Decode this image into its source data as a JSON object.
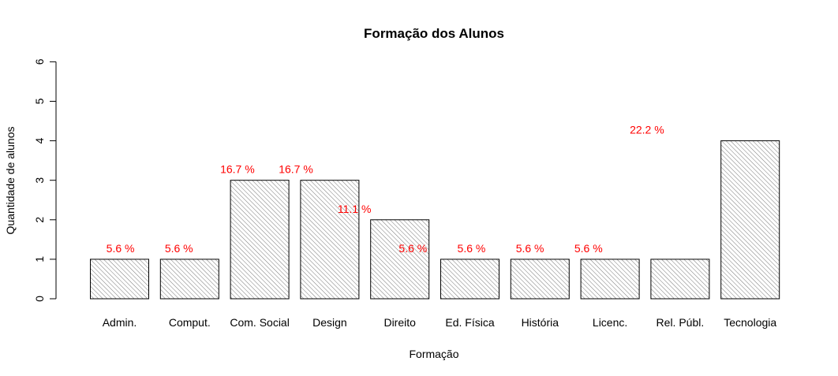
{
  "chart_data": {
    "type": "bar",
    "title": "Formação dos Alunos",
    "xlabel": "Formação",
    "ylabel": "Quantidade de alunos",
    "categories": [
      "Admin.",
      "Comput.",
      "Com. Social",
      "Design",
      "Direito",
      "Ed. Física",
      "História",
      "Licenc.",
      "Rel. Públ.",
      "Tecnologia"
    ],
    "values": [
      1,
      1,
      3,
      3,
      2,
      1,
      1,
      1,
      1,
      4
    ],
    "y_ticks": [
      "0",
      "1",
      "2",
      "3",
      "4",
      "5",
      "6"
    ],
    "ylim": [
      0,
      6
    ],
    "grid": false,
    "bar_fill": "diagonal hatch",
    "label_color": "#ff0000",
    "percent_labels": [
      {
        "text": "5.6 %",
        "x": 1.5,
        "y": 1.3
      },
      {
        "text": "5.6 %",
        "x": 2.5,
        "y": 1.3
      },
      {
        "text": "16.7 %",
        "x": 3.5,
        "y": 3.3
      },
      {
        "text": "16.7 %",
        "x": 4.5,
        "y": 3.3
      },
      {
        "text": "11.1 %",
        "x": 5.5,
        "y": 2.3
      },
      {
        "text": "5.6 %",
        "x": 6.5,
        "y": 1.3
      },
      {
        "text": "5.6 %",
        "x": 7.5,
        "y": 1.3
      },
      {
        "text": "5.6 %",
        "x": 8.5,
        "y": 1.3
      },
      {
        "text": "5.6 %",
        "x": 9.5,
        "y": 1.3
      },
      {
        "text": "22.2 %",
        "x": 10.5,
        "y": 4.3
      }
    ]
  }
}
